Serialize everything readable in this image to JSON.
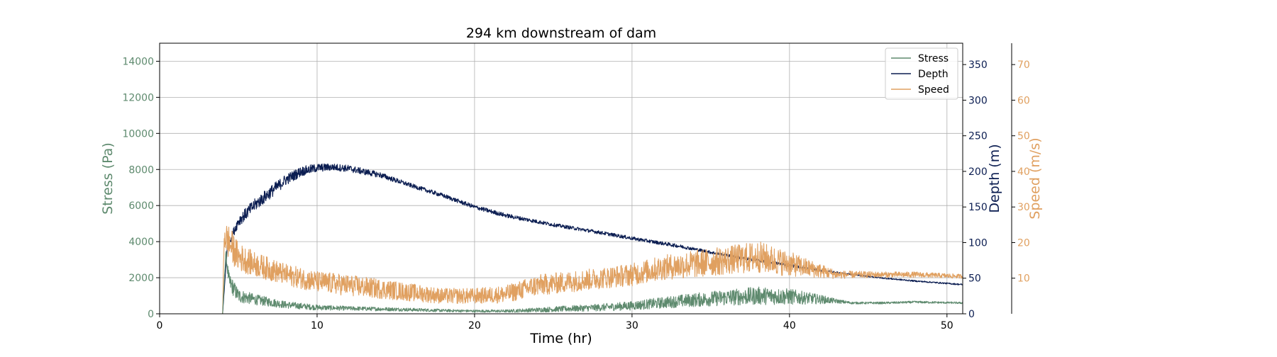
{
  "chart_data": {
    "type": "line",
    "title": "294 km downstream of dam",
    "xlabel": "Time (hr)",
    "xlim": [
      0,
      51
    ],
    "xticks": [
      0,
      10,
      20,
      30,
      40,
      50
    ],
    "grid": true,
    "legend_position": "top-right",
    "axes": [
      {
        "id": "stress",
        "label": "Stress (Pa)",
        "side": "left",
        "color": "#5e8a6e",
        "ylim": [
          0,
          15000
        ],
        "ticks": [
          0,
          2000,
          4000,
          6000,
          8000,
          10000,
          12000,
          14000
        ]
      },
      {
        "id": "depth",
        "label": "Depth (m)",
        "side": "right",
        "color": "#0b1d51",
        "ylim": [
          0,
          380
        ],
        "ticks": [
          0,
          50,
          100,
          150,
          200,
          250,
          300,
          350
        ]
      },
      {
        "id": "speed",
        "label": "Speed (m/s)",
        "side": "right-offset",
        "color": "#e0a060",
        "ylim": [
          0,
          76
        ],
        "ticks": [
          10,
          20,
          30,
          40,
          50,
          60,
          70
        ]
      }
    ],
    "series": [
      {
        "name": "Stress",
        "axis": "stress",
        "color": "#5e8a6e",
        "x": [
          0,
          4,
          4.2,
          4.4,
          5,
          6,
          8,
          10,
          12,
          15,
          18,
          20,
          22,
          25,
          28,
          30,
          33,
          36,
          38,
          40,
          42,
          43,
          44,
          46,
          48,
          51
        ],
        "y": [
          0,
          0,
          3400,
          1800,
          1000,
          800,
          500,
          350,
          300,
          250,
          180,
          150,
          150,
          250,
          350,
          450,
          700,
          900,
          1000,
          950,
          800,
          700,
          600,
          600,
          650,
          600
        ],
        "noise": [
          0,
          0,
          200,
          500,
          400,
          300,
          200,
          150,
          120,
          100,
          80,
          70,
          80,
          150,
          200,
          250,
          350,
          450,
          500,
          450,
          250,
          120,
          60,
          60,
          60,
          50
        ]
      },
      {
        "name": "Depth",
        "axis": "depth",
        "color": "#0b1d51",
        "x": [
          0,
          4,
          4.3,
          5,
          6,
          7,
          8,
          9,
          10,
          11,
          12,
          14,
          16,
          18,
          20,
          22,
          25,
          28,
          30,
          33,
          36,
          38,
          40,
          42,
          44,
          46,
          48,
          51
        ],
        "y": [
          0,
          0,
          95,
          130,
          152,
          170,
          188,
          200,
          205,
          206,
          204,
          195,
          180,
          166,
          150,
          138,
          125,
          114,
          106,
          95,
          82,
          75,
          68,
          61,
          55,
          50,
          46,
          41
        ],
        "noise": [
          0,
          0,
          4,
          8,
          9,
          9,
          8,
          7,
          6,
          5,
          5,
          4,
          3,
          3,
          3,
          3,
          2.5,
          2.5,
          2.5,
          2.5,
          2,
          2,
          2,
          1.5,
          1,
          1,
          1,
          1
        ]
      },
      {
        "name": "Speed",
        "axis": "speed",
        "color": "#e0a060",
        "x": [
          0,
          4,
          4.1,
          4.4,
          5,
          6,
          8,
          10,
          12,
          14,
          16,
          18,
          20,
          22,
          24,
          26,
          28,
          30,
          32,
          34,
          36,
          38,
          40,
          42,
          43,
          44,
          46,
          48,
          51
        ],
        "y": [
          0,
          0,
          22,
          20,
          16,
          14,
          11,
          9,
          8,
          7,
          6,
          5,
          5,
          5.5,
          8,
          9,
          10,
          11,
          13,
          14,
          15,
          16,
          14,
          12,
          11,
          11,
          11,
          11,
          10.5
        ],
        "noise": [
          0,
          0,
          4,
          5,
          4,
          3.5,
          3,
          3,
          3,
          2.8,
          2.5,
          2.2,
          2.2,
          2.5,
          3,
          3,
          3,
          3.2,
          3.5,
          4,
          4,
          4.5,
          3.5,
          2,
          1.2,
          1,
          0.8,
          0.8,
          0.6
        ]
      }
    ]
  }
}
